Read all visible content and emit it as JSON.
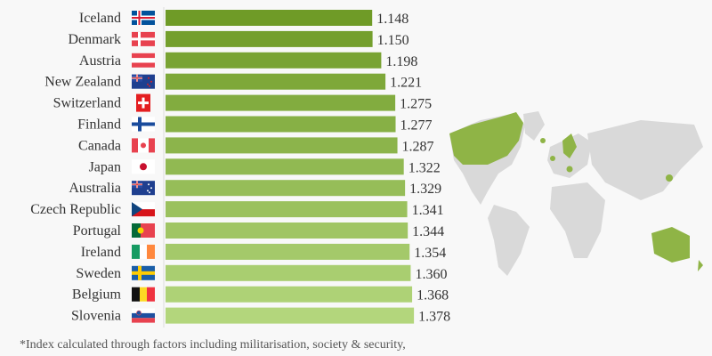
{
  "chart_data": {
    "type": "bar",
    "orientation": "horizontal",
    "categories": [
      "Iceland",
      "Denmark",
      "Austria",
      "New Zealand",
      "Switzerland",
      "Finland",
      "Canada",
      "Japan",
      "Australia",
      "Czech Republic",
      "Portugal",
      "Ireland",
      "Sweden",
      "Belgium",
      "Slovenia"
    ],
    "values": [
      1.148,
      1.15,
      1.198,
      1.221,
      1.275,
      1.277,
      1.287,
      1.322,
      1.329,
      1.341,
      1.344,
      1.354,
      1.36,
      1.368,
      1.378
    ],
    "value_labels": [
      "1.148",
      "1.150",
      "1.198",
      "1.221",
      "1.275",
      "1.277",
      "1.287",
      "1.322",
      "1.329",
      "1.341",
      "1.344",
      "1.354",
      "1.360",
      "1.368",
      "1.378"
    ],
    "flag_icons": [
      "iceland-flag",
      "denmark-flag",
      "austria-flag",
      "new-zealand-flag",
      "switzerland-flag",
      "finland-flag",
      "canada-flag",
      "japan-flag",
      "australia-flag",
      "czech-republic-flag",
      "portugal-flag",
      "ireland-flag",
      "sweden-flag",
      "belgium-flag",
      "slovenia-flag"
    ],
    "bar_color_top": "#6f9b27",
    "bar_color_bottom": "#b3d67c",
    "grid": false,
    "legend": "none",
    "map_highlight_color": "#8fb446",
    "map_base_color": "#d9d9d9"
  },
  "footnote": "*Index calculated through factors including militarisation, society & security,"
}
